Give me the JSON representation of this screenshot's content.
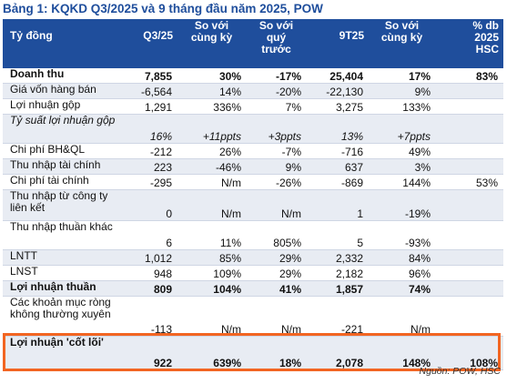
{
  "title": "Bảng 1: KQKD Q3/2025 và 9 tháng đầu năm 2025, POW",
  "headers": [
    "Tỷ đồng",
    "Q3/25",
    "So với\ncùng kỳ",
    "So với\nquý\ntrước",
    "9T25",
    "So với\ncùng kỳ",
    "% db\n2025\nHSC"
  ],
  "rows": [
    {
      "label": "Doanh thu",
      "cells": [
        "7,855",
        "30%",
        "-17%",
        "25,404",
        "17%",
        "83%"
      ]
    },
    {
      "label": "Giá vốn hàng bán",
      "cells": [
        "-6,564",
        "14%",
        "-20%",
        "-22,130",
        "9%",
        ""
      ]
    },
    {
      "label": "Lợi nhuận gộp",
      "cells": [
        "1,291",
        "336%",
        "7%",
        "3,275",
        "133%",
        ""
      ]
    },
    {
      "label": "Tỷ suất lợi nhuận gộp",
      "cells": [
        "16%",
        "+11ppts",
        "+3ppts",
        "13%",
        "+7ppts",
        ""
      ]
    },
    {
      "label": "Chi phí BH&QL",
      "cells": [
        "-212",
        "26%",
        "-7%",
        "-716",
        "49%",
        ""
      ]
    },
    {
      "label": "Thu nhập tài chính",
      "cells": [
        "223",
        "-46%",
        "9%",
        "637",
        "3%",
        ""
      ]
    },
    {
      "label": "Chi phí tài chính",
      "cells": [
        "-295",
        "N/m",
        "-26%",
        "-869",
        "144%",
        "53%"
      ]
    },
    {
      "label": "Thu nhập từ công ty liên kết",
      "cells": [
        "0",
        "N/m",
        "N/m",
        "1",
        "-19%",
        ""
      ]
    },
    {
      "label": "Thu nhập thuần khác",
      "cells": [
        "6",
        "11%",
        "805%",
        "5",
        "-93%",
        ""
      ]
    },
    {
      "label": "LNTT",
      "cells": [
        "1,012",
        "85%",
        "29%",
        "2,332",
        "84%",
        ""
      ]
    },
    {
      "label": "LNST",
      "cells": [
        "948",
        "109%",
        "29%",
        "2,182",
        "96%",
        ""
      ]
    },
    {
      "label": "Lợi nhuận thuần",
      "cells": [
        "809",
        "104%",
        "41%",
        "1,857",
        "74%",
        ""
      ]
    },
    {
      "label": "Các khoản mục ròng không thường xuyên",
      "cells": [
        "-113",
        "N/m",
        "N/m",
        "-221",
        "N/m",
        ""
      ]
    },
    {
      "label": "Lợi nhuận 'cốt lõi'",
      "cells": [
        "922",
        "639%",
        "18%",
        "2,078",
        "148%",
        "108%"
      ]
    }
  ],
  "source": "Nguồn: POW, HSC",
  "colors": {
    "header_bg": "#1f4e9c",
    "title": "#1f4e9c",
    "alt_row": "#e8ecf3",
    "highlight": "#f26522"
  }
}
